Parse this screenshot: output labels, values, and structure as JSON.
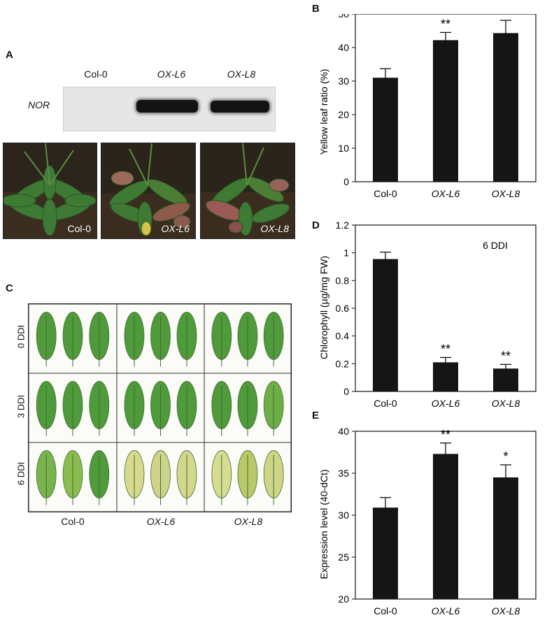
{
  "panels": {
    "A": {
      "label": "A",
      "gene_label": "NOR",
      "lanes": [
        "Col-0",
        "OX-L6",
        "OX-L8"
      ],
      "band_present": [
        false,
        true,
        true
      ],
      "plant_photos": [
        "Col-0",
        "OX-L6",
        "OX-L8"
      ]
    },
    "B": {
      "label": "B",
      "chart_data": {
        "type": "bar",
        "categories": [
          "Col-0",
          "OX-L6",
          "OX-L8"
        ],
        "values": [
          31.0,
          42.2,
          44.3
        ],
        "errors": [
          2.7,
          2.3,
          3.8
        ],
        "significance": [
          "",
          "**",
          "**"
        ],
        "ylabel": "Yellow leaf ratio (%)",
        "ylim": [
          0,
          50
        ],
        "yticks": [
          "0",
          "10",
          "20",
          "30",
          "40",
          "50"
        ],
        "annotation": ""
      }
    },
    "C": {
      "label": "C",
      "rows": [
        "0 DDI",
        "3 DDI",
        "6 DDI"
      ],
      "columns": [
        "Col-0",
        "OX-L6",
        "OX-L8"
      ]
    },
    "D": {
      "label": "D",
      "chart_data": {
        "type": "bar",
        "categories": [
          "Col-0",
          "OX-L6",
          "OX-L8"
        ],
        "values": [
          0.955,
          0.21,
          0.165
        ],
        "errors": [
          0.05,
          0.035,
          0.03
        ],
        "significance": [
          "",
          "**",
          "**"
        ],
        "ylabel": "Chlorophyll (µg/mg FW)",
        "ylim": [
          0,
          1.2
        ],
        "yticks": [
          "0",
          "0.2",
          "0.4",
          "0.6",
          "0.8",
          "1",
          "1.2"
        ],
        "annotation": "6 DDI"
      }
    },
    "E": {
      "label": "E",
      "chart_data": {
        "type": "bar",
        "categories": [
          "Col-0",
          "OX-L6",
          "OX-L8"
        ],
        "values": [
          30.9,
          37.3,
          34.5
        ],
        "errors": [
          1.2,
          1.3,
          1.5
        ],
        "significance": [
          "",
          "**",
          "*"
        ],
        "ylabel": "Expression level (40-dCt)",
        "ylim": [
          20,
          40
        ],
        "yticks": [
          "20",
          "25",
          "30",
          "35",
          "40"
        ],
        "annotation": ""
      }
    }
  },
  "colors": {
    "bar": "#151515",
    "leaf_green": "#4f9a3a",
    "leaf_yellow": "#d8d98e",
    "soil": "#3a2d20"
  }
}
